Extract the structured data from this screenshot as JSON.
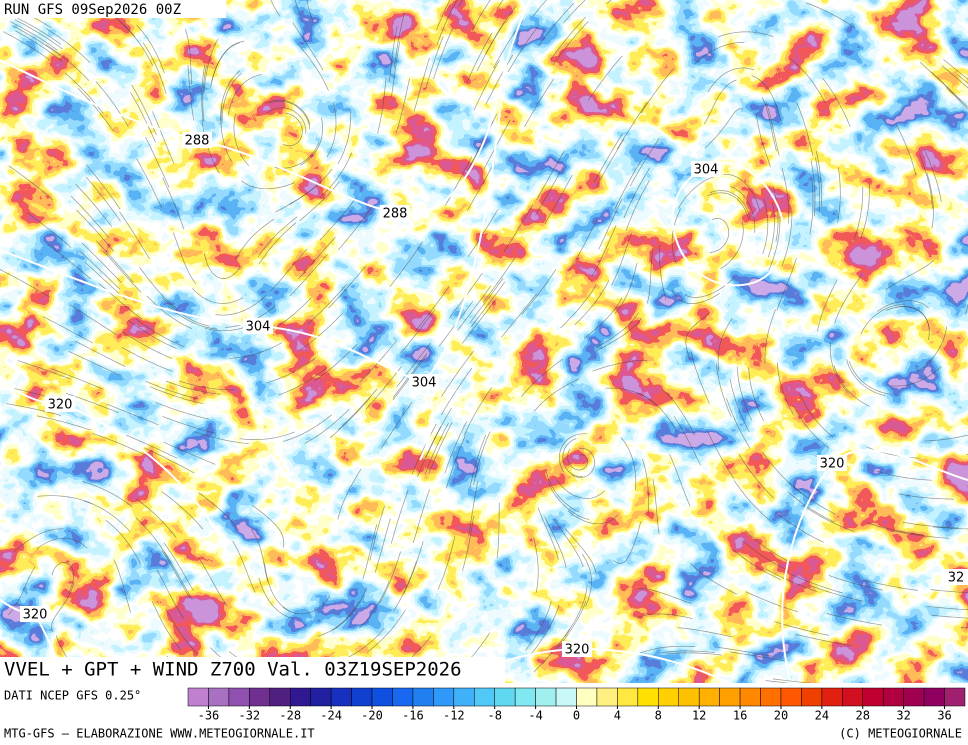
{
  "header": {
    "run": "RUN GFS 09Sep2026 00Z"
  },
  "map": {
    "contour_labels": [
      "288",
      "288",
      "304",
      "304",
      "304",
      "320",
      "320",
      "320",
      "320",
      "32"
    ]
  },
  "title": "VVEL + GPT + WIND Z700 Val. 03Z19SEP2026",
  "colorbar": {
    "source": "DATI NCEP GFS 0.25°",
    "lim": [
      -38,
      38
    ],
    "ticks": [
      -36,
      -32,
      -28,
      -24,
      -20,
      -16,
      -12,
      -8,
      -4,
      0,
      4,
      8,
      12,
      16,
      20,
      24,
      28,
      32,
      36
    ],
    "colors": [
      "#c080d0",
      "#a870c0",
      "#9050b0",
      "#703090",
      "#502080",
      "#301890",
      "#2020a0",
      "#1830c0",
      "#1040d0",
      "#1050e0",
      "#1868f0",
      "#2080f0",
      "#3098f8",
      "#40b0f8",
      "#50c8f8",
      "#60d8f0",
      "#80e8f0",
      "#a0f0f0",
      "#c8f8f8",
      "#ffffc0",
      "#fff080",
      "#ffe840",
      "#ffe000",
      "#ffd000",
      "#ffc000",
      "#ffb000",
      "#ffa000",
      "#ff8800",
      "#ff7000",
      "#ff5800",
      "#f04000",
      "#e02010",
      "#d01020",
      "#c00030",
      "#b00040",
      "#a00050",
      "#900060",
      "#a02070"
    ]
  },
  "footer": {
    "left": "MTG-GFS — ELABORAZIONE WWW.METEOGIORNALE.IT",
    "right": "(C) METEOGIORNALE"
  }
}
